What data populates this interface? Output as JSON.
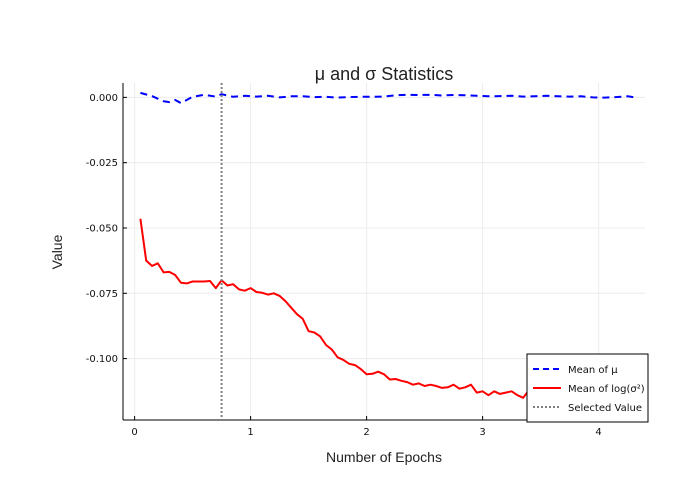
{
  "chart_data": {
    "type": "line",
    "title": "μ and σ Statistics",
    "xlabel": "Number of Epochs",
    "ylabel": "Value",
    "xlim": [
      -0.1,
      4.4
    ],
    "ylim": [
      -0.1235,
      0.0055
    ],
    "xticks": [
      0,
      1,
      2,
      3,
      4
    ],
    "xtick_labels": [
      "0",
      "1",
      "2",
      "3",
      "4"
    ],
    "yticks": [
      0,
      -0.025,
      -0.05,
      -0.075,
      -0.1
    ],
    "ytick_labels": [
      "0.000",
      "-0.025",
      "-0.050",
      "-0.075",
      "-0.100"
    ],
    "grid": true,
    "legend_position": "bottom-right",
    "series": [
      {
        "name": "Mean of μ",
        "color": "#0000ff",
        "style": "dashed",
        "x": [
          0.05,
          0.15,
          0.25,
          0.3,
          0.35,
          0.4,
          0.5,
          0.6,
          0.7,
          0.75,
          0.85,
          0.95,
          1.05,
          1.15,
          1.25,
          1.35,
          1.45,
          1.55,
          1.65,
          1.75,
          1.85,
          1.95,
          2.05,
          2.15,
          2.25,
          2.35,
          2.45,
          2.55,
          2.65,
          2.75,
          2.85,
          2.95,
          3.05,
          3.15,
          3.25,
          3.35,
          3.45,
          3.55,
          3.65,
          3.75,
          3.85,
          3.95,
          4.05,
          4.15,
          4.25,
          4.3
        ],
        "y": [
          0.0017,
          0.0005,
          -0.0015,
          -0.0018,
          -0.001,
          -0.0022,
          0.0002,
          0.001,
          0.0003,
          0.0012,
          0.0002,
          0.0006,
          0.0003,
          0.0006,
          0.0,
          0.0004,
          0.0004,
          0.0001,
          0.0002,
          -0.0001,
          0.0001,
          0.0002,
          0.0002,
          0.0003,
          0.0008,
          0.001,
          0.0009,
          0.001,
          0.0007,
          0.0009,
          0.0008,
          0.0006,
          0.0004,
          0.0005,
          0.0006,
          0.0003,
          0.0004,
          0.0006,
          0.0004,
          0.0003,
          0.0004,
          0.0,
          -0.0001,
          0.0001,
          0.0004,
          0.0001
        ]
      },
      {
        "name": "Mean of log(σ²)",
        "color": "#ff0000",
        "style": "solid",
        "x": [
          0.05,
          0.1,
          0.15,
          0.2,
          0.25,
          0.3,
          0.35,
          0.4,
          0.45,
          0.5,
          0.55,
          0.6,
          0.65,
          0.7,
          0.75,
          0.8,
          0.85,
          0.9,
          0.95,
          1.0,
          1.05,
          1.1,
          1.15,
          1.2,
          1.25,
          1.3,
          1.35,
          1.4,
          1.45,
          1.5,
          1.55,
          1.6,
          1.65,
          1.7,
          1.75,
          1.8,
          1.85,
          1.9,
          1.95,
          2.0,
          2.05,
          2.1,
          2.15,
          2.2,
          2.25,
          2.3,
          2.35,
          2.4,
          2.45,
          2.5,
          2.55,
          2.6,
          2.65,
          2.7,
          2.75,
          2.8,
          2.85,
          2.9,
          2.95,
          3.0,
          3.05,
          3.1,
          3.15,
          3.2,
          3.25,
          3.3,
          3.35,
          3.4
        ],
        "y": [
          -0.0465,
          -0.0625,
          -0.0645,
          -0.0635,
          -0.067,
          -0.0668,
          -0.068,
          -0.071,
          -0.0712,
          -0.0705,
          -0.0705,
          -0.0705,
          -0.0703,
          -0.073,
          -0.07,
          -0.072,
          -0.0715,
          -0.0735,
          -0.074,
          -0.073,
          -0.0745,
          -0.0748,
          -0.0755,
          -0.075,
          -0.076,
          -0.078,
          -0.0805,
          -0.083,
          -0.0848,
          -0.0895,
          -0.09,
          -0.0915,
          -0.0948,
          -0.0965,
          -0.0995,
          -0.1005,
          -0.102,
          -0.1025,
          -0.104,
          -0.106,
          -0.1058,
          -0.105,
          -0.106,
          -0.108,
          -0.1078,
          -0.1085,
          -0.109,
          -0.11,
          -0.1095,
          -0.1105,
          -0.11,
          -0.1105,
          -0.1112,
          -0.111,
          -0.11,
          -0.1115,
          -0.111,
          -0.11,
          -0.113,
          -0.1125,
          -0.114,
          -0.1125,
          -0.1135,
          -0.113,
          -0.1125,
          -0.114,
          -0.115,
          -0.112
        ]
      },
      {
        "name": "Selected Value",
        "color": "#808080",
        "style": "dotted",
        "type": "vline",
        "x": 0.75
      }
    ]
  }
}
